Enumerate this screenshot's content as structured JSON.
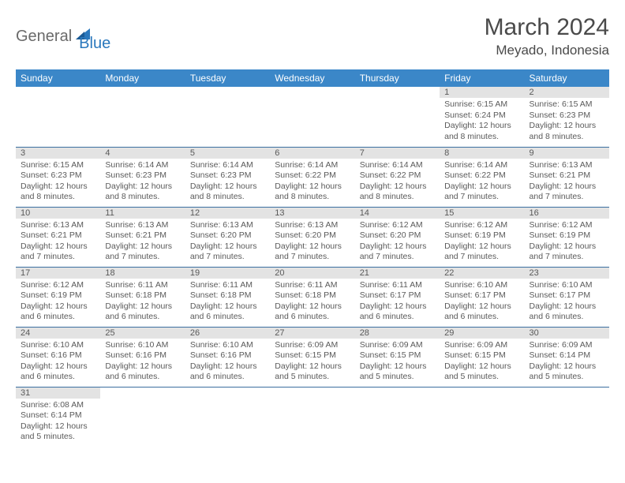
{
  "brand": {
    "part1": "General",
    "part2": "Blue"
  },
  "title": "March 2024",
  "location": "Meyado, Indonesia",
  "colors": {
    "header_bg": "#3b87c8",
    "header_text": "#ffffff",
    "daynum_bg": "#e3e3e3",
    "row_border": "#3b6fa0",
    "text": "#5a5a5a",
    "brand_gray": "#6a6a6a",
    "brand_blue": "#2a78bd"
  },
  "weekdays": [
    "Sunday",
    "Monday",
    "Tuesday",
    "Wednesday",
    "Thursday",
    "Friday",
    "Saturday"
  ],
  "weeks": [
    [
      null,
      null,
      null,
      null,
      null,
      {
        "n": "1",
        "sr": "6:15 AM",
        "ss": "6:24 PM",
        "dl": "12 hours and 8 minutes."
      },
      {
        "n": "2",
        "sr": "6:15 AM",
        "ss": "6:23 PM",
        "dl": "12 hours and 8 minutes."
      }
    ],
    [
      {
        "n": "3",
        "sr": "6:15 AM",
        "ss": "6:23 PM",
        "dl": "12 hours and 8 minutes."
      },
      {
        "n": "4",
        "sr": "6:14 AM",
        "ss": "6:23 PM",
        "dl": "12 hours and 8 minutes."
      },
      {
        "n": "5",
        "sr": "6:14 AM",
        "ss": "6:23 PM",
        "dl": "12 hours and 8 minutes."
      },
      {
        "n": "6",
        "sr": "6:14 AM",
        "ss": "6:22 PM",
        "dl": "12 hours and 8 minutes."
      },
      {
        "n": "7",
        "sr": "6:14 AM",
        "ss": "6:22 PM",
        "dl": "12 hours and 8 minutes."
      },
      {
        "n": "8",
        "sr": "6:14 AM",
        "ss": "6:22 PM",
        "dl": "12 hours and 7 minutes."
      },
      {
        "n": "9",
        "sr": "6:13 AM",
        "ss": "6:21 PM",
        "dl": "12 hours and 7 minutes."
      }
    ],
    [
      {
        "n": "10",
        "sr": "6:13 AM",
        "ss": "6:21 PM",
        "dl": "12 hours and 7 minutes."
      },
      {
        "n": "11",
        "sr": "6:13 AM",
        "ss": "6:21 PM",
        "dl": "12 hours and 7 minutes."
      },
      {
        "n": "12",
        "sr": "6:13 AM",
        "ss": "6:20 PM",
        "dl": "12 hours and 7 minutes."
      },
      {
        "n": "13",
        "sr": "6:13 AM",
        "ss": "6:20 PM",
        "dl": "12 hours and 7 minutes."
      },
      {
        "n": "14",
        "sr": "6:12 AM",
        "ss": "6:20 PM",
        "dl": "12 hours and 7 minutes."
      },
      {
        "n": "15",
        "sr": "6:12 AM",
        "ss": "6:19 PM",
        "dl": "12 hours and 7 minutes."
      },
      {
        "n": "16",
        "sr": "6:12 AM",
        "ss": "6:19 PM",
        "dl": "12 hours and 7 minutes."
      }
    ],
    [
      {
        "n": "17",
        "sr": "6:12 AM",
        "ss": "6:19 PM",
        "dl": "12 hours and 6 minutes."
      },
      {
        "n": "18",
        "sr": "6:11 AM",
        "ss": "6:18 PM",
        "dl": "12 hours and 6 minutes."
      },
      {
        "n": "19",
        "sr": "6:11 AM",
        "ss": "6:18 PM",
        "dl": "12 hours and 6 minutes."
      },
      {
        "n": "20",
        "sr": "6:11 AM",
        "ss": "6:18 PM",
        "dl": "12 hours and 6 minutes."
      },
      {
        "n": "21",
        "sr": "6:11 AM",
        "ss": "6:17 PM",
        "dl": "12 hours and 6 minutes."
      },
      {
        "n": "22",
        "sr": "6:10 AM",
        "ss": "6:17 PM",
        "dl": "12 hours and 6 minutes."
      },
      {
        "n": "23",
        "sr": "6:10 AM",
        "ss": "6:17 PM",
        "dl": "12 hours and 6 minutes."
      }
    ],
    [
      {
        "n": "24",
        "sr": "6:10 AM",
        "ss": "6:16 PM",
        "dl": "12 hours and 6 minutes."
      },
      {
        "n": "25",
        "sr": "6:10 AM",
        "ss": "6:16 PM",
        "dl": "12 hours and 6 minutes."
      },
      {
        "n": "26",
        "sr": "6:10 AM",
        "ss": "6:16 PM",
        "dl": "12 hours and 6 minutes."
      },
      {
        "n": "27",
        "sr": "6:09 AM",
        "ss": "6:15 PM",
        "dl": "12 hours and 5 minutes."
      },
      {
        "n": "28",
        "sr": "6:09 AM",
        "ss": "6:15 PM",
        "dl": "12 hours and 5 minutes."
      },
      {
        "n": "29",
        "sr": "6:09 AM",
        "ss": "6:15 PM",
        "dl": "12 hours and 5 minutes."
      },
      {
        "n": "30",
        "sr": "6:09 AM",
        "ss": "6:14 PM",
        "dl": "12 hours and 5 minutes."
      }
    ],
    [
      {
        "n": "31",
        "sr": "6:08 AM",
        "ss": "6:14 PM",
        "dl": "12 hours and 5 minutes."
      },
      null,
      null,
      null,
      null,
      null,
      null
    ]
  ],
  "labels": {
    "sunrise": "Sunrise: ",
    "sunset": "Sunset: ",
    "daylight": "Daylight: "
  }
}
